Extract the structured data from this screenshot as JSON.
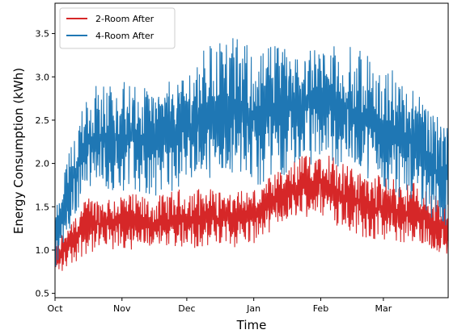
{
  "chart_data": {
    "type": "line",
    "title": "",
    "xlabel": "Time",
    "ylabel": "Energy Consumption (kWh)",
    "x_ticks": [
      "Oct",
      "Nov",
      "Dec",
      "Jan",
      "Feb",
      "Mar"
    ],
    "x_tick_dates": [
      "2023-10-01",
      "2023-11-01",
      "2023-12-01",
      "2024-01-01",
      "2024-02-01",
      "2024-03-01"
    ],
    "x_range": [
      "2023-10-01",
      "2024-03-31"
    ],
    "y_ticks": [
      "0.5",
      "1.0",
      "1.5",
      "2.0",
      "2.5",
      "3.0",
      "3.5"
    ],
    "ylim": [
      0.45,
      3.85
    ],
    "legend_position": "top-left",
    "grid": false,
    "series": [
      {
        "name": "2-Room After",
        "color": "#d62728",
        "x": [
          "2023-10-01",
          "2023-10-15",
          "2023-11-01",
          "2023-11-15",
          "2023-12-01",
          "2023-12-15",
          "2024-01-01",
          "2024-01-15",
          "2024-02-01",
          "2024-02-15",
          "2024-03-01",
          "2024-03-15",
          "2024-03-31"
        ],
        "y_low": [
          0.65,
          0.95,
          0.95,
          0.95,
          1.0,
          1.0,
          1.05,
          1.25,
          1.35,
          1.2,
          1.05,
          1.0,
          0.85
        ],
        "y_high": [
          1.1,
          1.7,
          1.7,
          1.6,
          1.75,
          1.8,
          1.75,
          1.95,
          2.25,
          2.05,
          1.9,
          1.8,
          1.55
        ]
      },
      {
        "name": "4-Room After",
        "color": "#1f77b4",
        "x": [
          "2023-10-01",
          "2023-10-15",
          "2023-11-01",
          "2023-11-15",
          "2023-12-01",
          "2023-12-15",
          "2024-01-01",
          "2024-01-15",
          "2024-02-01",
          "2024-02-15",
          "2024-03-01",
          "2024-03-15",
          "2024-03-31"
        ],
        "y_low": [
          0.75,
          1.55,
          1.6,
          1.6,
          1.65,
          1.7,
          1.65,
          1.85,
          2.0,
          1.75,
          1.55,
          1.55,
          1.2
        ],
        "y_high": [
          1.5,
          2.9,
          3.0,
          3.0,
          3.2,
          3.5,
          3.4,
          3.55,
          3.45,
          3.35,
          3.2,
          3.0,
          2.55
        ]
      }
    ]
  }
}
